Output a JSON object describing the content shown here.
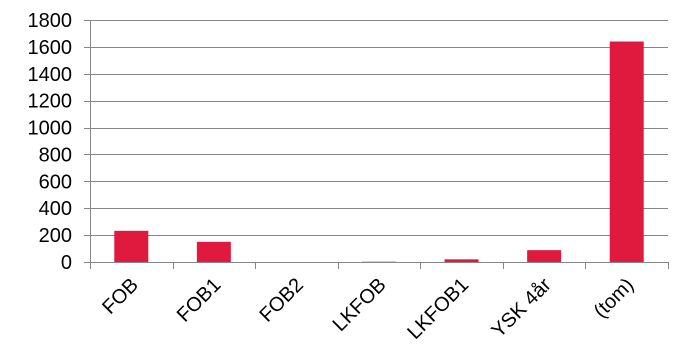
{
  "chart_data": {
    "type": "bar",
    "categories": [
      "FOB",
      "FOB1",
      "FOB2",
      "LKFOB",
      "LKFOB1",
      "YSK 4år",
      "(tom)"
    ],
    "values": [
      232,
      150,
      0,
      2,
      20,
      88,
      1640
    ],
    "ylim": [
      0,
      1800
    ],
    "yticks": [
      0,
      200,
      400,
      600,
      800,
      1000,
      1200,
      1400,
      1600,
      1800
    ],
    "ytick_labels": [
      "0",
      "200",
      "400",
      "600",
      "800",
      "1000",
      "1200",
      "1400",
      "1600",
      "1800"
    ],
    "title": "",
    "xlabel": "",
    "ylabel": "",
    "grid": true,
    "legend": "none",
    "colors": {
      "bar": "#e0193f",
      "grid": "#868686",
      "axis": "#868686"
    }
  }
}
